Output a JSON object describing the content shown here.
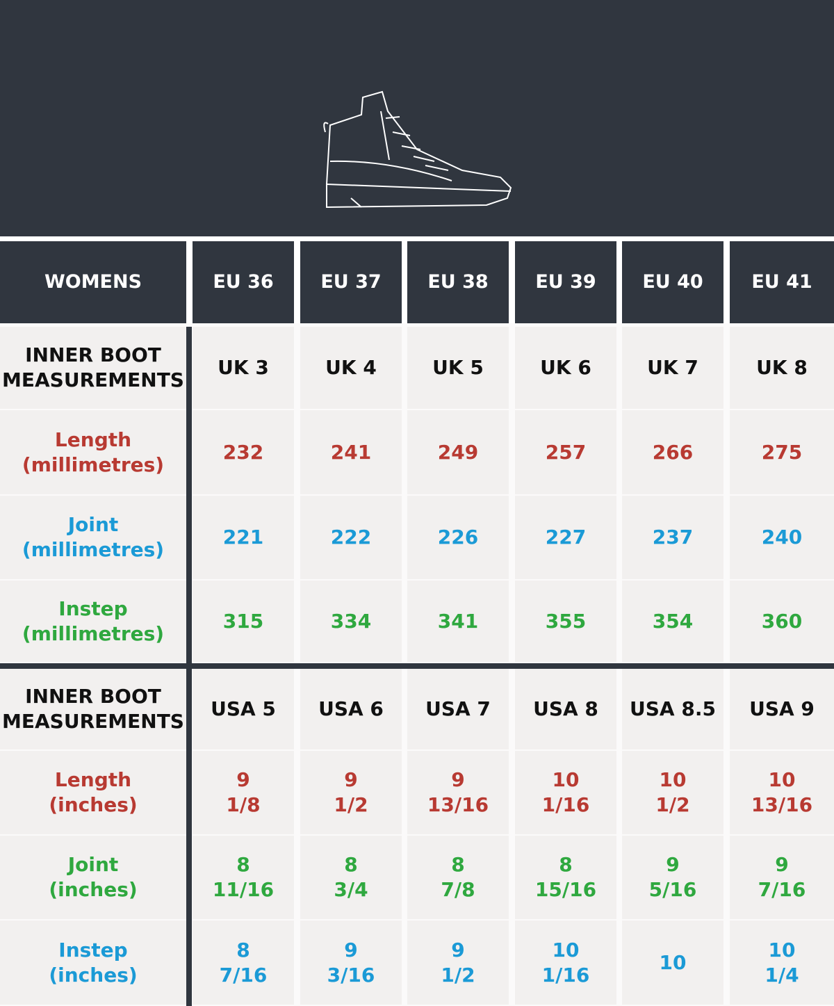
{
  "header": {
    "title": "WOMENS",
    "columns": [
      "EU 36",
      "EU 37",
      "EU 38",
      "EU 39",
      "EU 40",
      "EU 41"
    ]
  },
  "sections": [
    {
      "label": [
        "INNER BOOT",
        "MEASUREMENTS"
      ],
      "sizes": [
        "UK 3",
        "UK 4",
        "UK 5",
        "UK 6",
        "UK 7",
        "UK 8"
      ],
      "rows": [
        {
          "label": [
            "Length",
            "(millimetres)"
          ],
          "color": "#b83a32",
          "values": [
            [
              "232"
            ],
            [
              "241"
            ],
            [
              "249"
            ],
            [
              "257"
            ],
            [
              "266"
            ],
            [
              "275"
            ]
          ]
        },
        {
          "label": [
            "Joint",
            "(millimetres)"
          ],
          "color": "#1b9ad6",
          "values": [
            [
              "221"
            ],
            [
              "222"
            ],
            [
              "226"
            ],
            [
              "227"
            ],
            [
              "237"
            ],
            [
              "240"
            ]
          ]
        },
        {
          "label": [
            "Instep",
            "(millimetres)"
          ],
          "color": "#2fa83f",
          "values": [
            [
              "315"
            ],
            [
              "334"
            ],
            [
              "341"
            ],
            [
              "355"
            ],
            [
              "354"
            ],
            [
              "360"
            ]
          ]
        }
      ]
    },
    {
      "label": [
        "INNER BOOT",
        "MEASUREMENTS"
      ],
      "sizes": [
        "USA 5",
        "USA 6",
        "USA 7",
        "USA 8",
        "USA 8.5",
        "USA 9"
      ],
      "rows": [
        {
          "label": [
            "Length",
            "(inches)"
          ],
          "color": "#b83a32",
          "values": [
            [
              "9",
              "1/8"
            ],
            [
              "9",
              "1/2"
            ],
            [
              "9",
              "13/16"
            ],
            [
              "10",
              "1/16"
            ],
            [
              "10",
              "1/2"
            ],
            [
              "10",
              "13/16"
            ]
          ]
        },
        {
          "label": [
            "Joint",
            "(inches)"
          ],
          "color": "#2fa83f",
          "values": [
            [
              "8",
              "11/16"
            ],
            [
              "8",
              "3/4"
            ],
            [
              "8",
              "7/8"
            ],
            [
              "8",
              "15/16"
            ],
            [
              "9",
              "5/16"
            ],
            [
              "9",
              "7/16"
            ]
          ]
        },
        {
          "label": [
            "Instep",
            "(inches)"
          ],
          "color": "#1b9ad6",
          "values": [
            [
              "8",
              "7/16"
            ],
            [
              "9",
              "3/16"
            ],
            [
              "9",
              "1/2"
            ],
            [
              "10",
              "1/16"
            ],
            [
              "10"
            ],
            [
              "10",
              "1/4"
            ]
          ]
        }
      ]
    }
  ]
}
